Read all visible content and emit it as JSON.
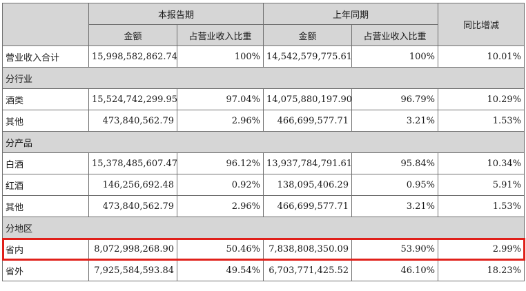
{
  "header": {
    "current_period": "本报告期",
    "prior_period": "上年同期",
    "yoy_change": "同比增减",
    "amount": "金额",
    "share_of_revenue": "占营业收入比重"
  },
  "rows": [
    {
      "type": "data",
      "label": "营业收入合计",
      "cur_amount": "15,998,582,862.74",
      "cur_share": "100%",
      "prev_amount": "14,542,579,775.61",
      "prev_share": "100%",
      "yoy": "10.01%"
    },
    {
      "type": "section",
      "label": "分行业"
    },
    {
      "type": "data",
      "label": "酒类",
      "cur_amount": "15,524,742,299.95",
      "cur_share": "97.04%",
      "prev_amount": "14,075,880,197.90",
      "prev_share": "96.79%",
      "yoy": "10.29%"
    },
    {
      "type": "data",
      "label": "其他",
      "cur_amount": "473,840,562.79",
      "cur_share": "2.96%",
      "prev_amount": "466,699,577.71",
      "prev_share": "3.21%",
      "yoy": "1.53%"
    },
    {
      "type": "section",
      "label": "分产品"
    },
    {
      "type": "data",
      "label": "白酒",
      "cur_amount": "15,378,485,607.47",
      "cur_share": "96.12%",
      "prev_amount": "13,937,784,791.61",
      "prev_share": "95.84%",
      "yoy": "10.34%"
    },
    {
      "type": "data",
      "label": "红酒",
      "cur_amount": "146,256,692.48",
      "cur_share": "0.92%",
      "prev_amount": "138,095,406.29",
      "prev_share": "0.95%",
      "yoy": "5.91%"
    },
    {
      "type": "data",
      "label": "其他",
      "cur_amount": "473,840,562.79",
      "cur_share": "2.96%",
      "prev_amount": "466,699,577.71",
      "prev_share": "3.21%",
      "yoy": "1.53%"
    },
    {
      "type": "section",
      "label": "分地区"
    },
    {
      "type": "data",
      "label": "省内",
      "cur_amount": "8,072,998,268.90",
      "cur_share": "50.46%",
      "prev_amount": "7,838,808,350.09",
      "prev_share": "53.90%",
      "yoy": "2.99%",
      "highlighted": true
    },
    {
      "type": "data",
      "label": "省外",
      "cur_amount": "7,925,584,593.84",
      "cur_share": "49.54%",
      "prev_amount": "6,703,771,425.52",
      "prev_share": "46.10%",
      "yoy": "18.23%"
    }
  ],
  "colors": {
    "header_bg": "#d6d6d6",
    "border": "#6f6f6f",
    "highlight": "#e0201a"
  }
}
